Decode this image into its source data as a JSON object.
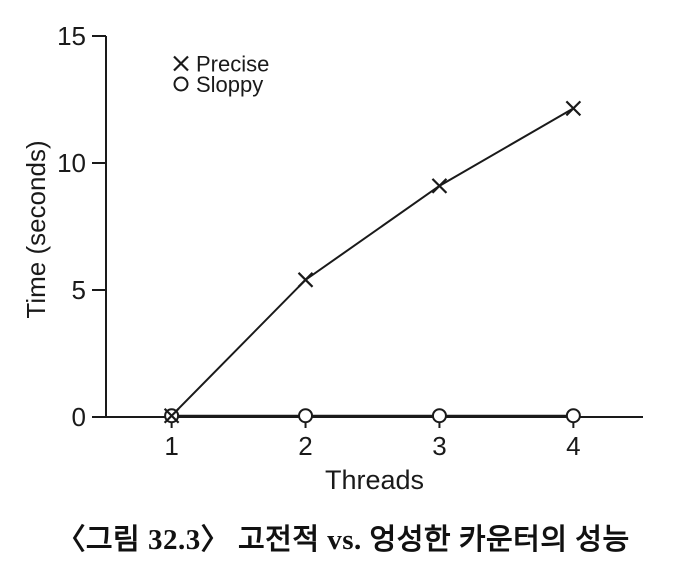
{
  "figure": {
    "caption": "〈그림 32.3〉 고전적 vs. 엉성한 카운터의 성능"
  },
  "chart_data": {
    "type": "line",
    "title": "",
    "xlabel": "Threads",
    "ylabel": "Time (seconds)",
    "x": [
      1,
      2,
      3,
      4
    ],
    "xticks": [
      1,
      2,
      3,
      4
    ],
    "yticks": [
      0,
      5,
      10,
      15
    ],
    "xlim": [
      0.51,
      4.52
    ],
    "ylim": [
      0,
      15
    ],
    "grid": false,
    "legend_position": "top-left-inside",
    "axis_color": "#1a1a1a",
    "series": [
      {
        "name": "Precise",
        "marker": "x",
        "color": "#1a1a1a",
        "values": [
          0.05,
          5.4,
          9.1,
          12.15
        ]
      },
      {
        "name": "Sloppy",
        "marker": "circle",
        "color": "#1a1a1a",
        "values": [
          0.05,
          0.05,
          0.05,
          0.05
        ]
      }
    ]
  }
}
